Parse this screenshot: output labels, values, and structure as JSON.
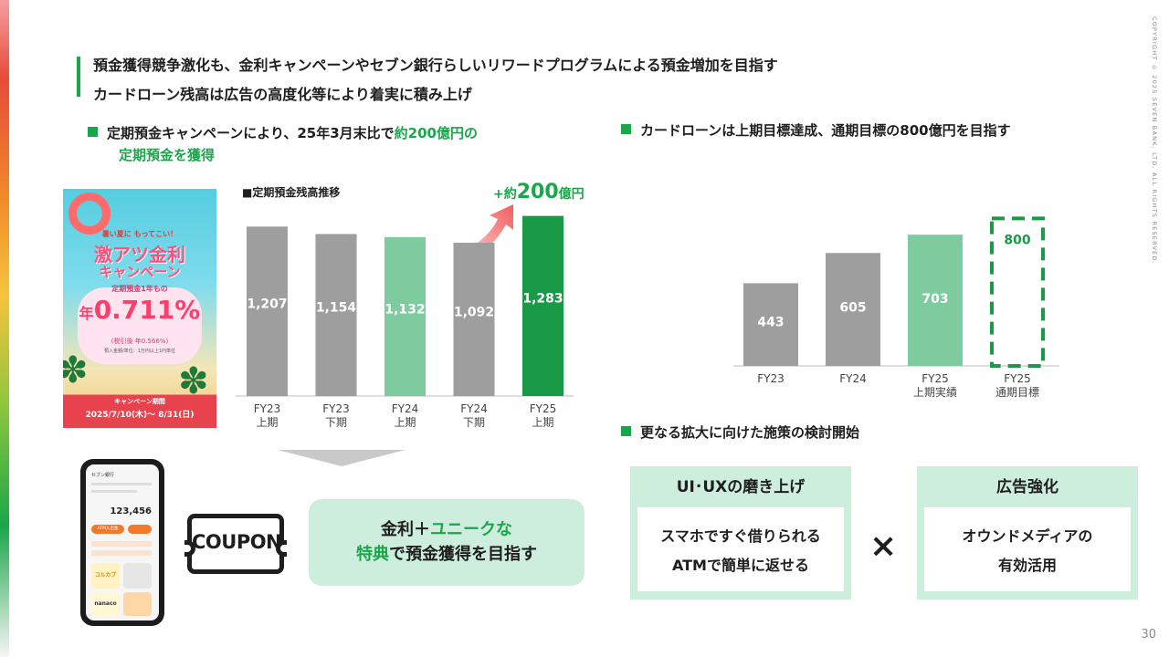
{
  "header": {
    "line1": "預金獲得競争激化も、金利キャンペーンやセブン銀行らしいリワードプログラムによる預金増加を目指す",
    "line2": "カードローン残高は広告の高度化等により着実に積み上げ"
  },
  "copyright": "COPYRIGHT © 2025 SEVEN BANK, LTD. ALL RIGHTS RESERVED.",
  "page_number": "30",
  "left_section": {
    "title_part1": "定期預金キャンペーンにより、25年3月末比で",
    "title_highlight1": "約200億円の",
    "title_highlight2": "定期預金を獲得",
    "banner": {
      "tagline": "暑い夏に もってこい！",
      "headline1": "激アツ金利",
      "headline2": "キャンペーン",
      "product": "定期預金1年もの",
      "rate_prefix": "年",
      "rate": "0.711%",
      "after_tax": "(税引後 年0.566%)",
      "condition": "預入金額/単位：1万円以上1円単位",
      "period_label": "キャンペーン期間",
      "period": "2025/7/10(木)～ 8/31(日)"
    },
    "increase_prefix": "+約",
    "increase_value": "200",
    "increase_unit": "億円",
    "callout_line1a": "金利＋",
    "callout_line1b": "ユニークな",
    "callout_line2a": "特典",
    "callout_line2b": "で預金獲得を目指す",
    "coupon_text": "COUPON",
    "phone": {
      "app_name": "セブン銀行",
      "balance": "123,456",
      "atm_button": "ATM入出金",
      "card1": "コルカブ",
      "card2": "nanaco"
    }
  },
  "right_section": {
    "title1": "カードローンは上期目標達成、通期目標の800億円を目指す",
    "title2": "更なる拡大に向けた施策の検討開始",
    "box1": {
      "title": "UI･UXの磨き上げ",
      "line1": "スマホですぐ借りられる",
      "line2": "ATMで簡単に返せる"
    },
    "times": "×",
    "box2": {
      "title": "広告強化",
      "line1": "オウンドメディアの",
      "line2": "有効活用"
    }
  },
  "chart_data": [
    {
      "type": "bar",
      "title": "■定期預金残高推移",
      "categories": [
        [
          "FY23",
          "上期"
        ],
        [
          "FY23",
          "下期"
        ],
        [
          "FY24",
          "上期"
        ],
        [
          "FY24",
          "下期"
        ],
        [
          "FY25",
          "上期"
        ]
      ],
      "values": [
        1207,
        1154,
        1132,
        1092,
        1283
      ],
      "value_labels": [
        "1,207",
        "1,154",
        "1,132",
        "1,092",
        "1,283"
      ],
      "colors": [
        "#9e9e9e",
        "#9e9e9e",
        "#7fcba0",
        "#9e9e9e",
        "#1a9a47"
      ],
      "ylim": [
        0,
        1300
      ],
      "grid": false,
      "legend": "none"
    },
    {
      "type": "bar",
      "title": "",
      "categories": [
        [
          "FY23"
        ],
        [
          "FY24"
        ],
        [
          "FY25",
          "上期実績"
        ],
        [
          "FY25",
          "通期目標"
        ]
      ],
      "values": [
        443,
        605,
        703,
        800
      ],
      "value_labels": [
        "443",
        "605",
        "703",
        "800"
      ],
      "colors": [
        "#9e9e9e",
        "#9e9e9e",
        "#7fcba0",
        "#1a9a47"
      ],
      "target_index": 3,
      "ylim": [
        0,
        880
      ],
      "grid": false,
      "legend": "none"
    }
  ]
}
